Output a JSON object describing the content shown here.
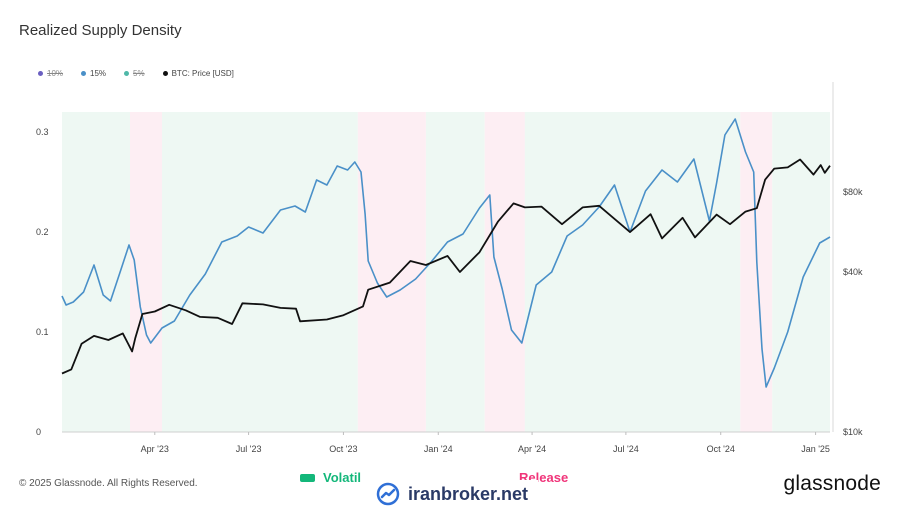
{
  "title": "Realized Supply Density",
  "legend": [
    {
      "label": "10%",
      "color": "#6a5fc1",
      "enabled": false
    },
    {
      "label": "15%",
      "color": "#4a90c8",
      "enabled": true
    },
    {
      "label": "5%",
      "color": "#4fb8a8",
      "enabled": false
    },
    {
      "label": "BTC: Price [USD]",
      "color": "#111111",
      "enabled": true
    }
  ],
  "footer": {
    "copyright": "© 2025 Glassnode. All Rights Reserved.",
    "brand": "glassnode",
    "regime_legend": [
      {
        "label": "Volatil",
        "color": "#13b77a"
      },
      {
        "label": "Release",
        "color": "#f0357a"
      }
    ],
    "watermark": "iranbroker.net"
  },
  "chart_data": {
    "type": "line",
    "title": "Realized Supply Density",
    "x_ticks": [
      "Apr '23",
      "Jul '23",
      "Oct '23",
      "Jan '24",
      "Apr '24",
      "Jul '24",
      "Oct '24",
      "Jan '25"
    ],
    "x_range": [
      "2023-01-01",
      "2025-01-15"
    ],
    "y_left": {
      "ticks": [
        "0",
        "0.1",
        "0.2",
        "0.3"
      ],
      "range": [
        0,
        0.32
      ]
    },
    "y_right": {
      "ticks": [
        "$10k",
        "$40k",
        "$80k"
      ],
      "scale": "log",
      "range": [
        10000,
        160000
      ]
    },
    "grid": true,
    "legend_position": "top-left",
    "regimes": [
      {
        "start": "2023-01-01",
        "end": "2023-03-08",
        "state": "compression",
        "color": "#eef8f3"
      },
      {
        "start": "2023-03-08",
        "end": "2023-04-08",
        "state": "release",
        "color": "#fdeef3"
      },
      {
        "start": "2023-04-08",
        "end": "2023-10-15",
        "state": "compression",
        "color": "#eef8f3"
      },
      {
        "start": "2023-10-15",
        "end": "2023-12-20",
        "state": "release",
        "color": "#fdeef3"
      },
      {
        "start": "2023-12-20",
        "end": "2024-02-15",
        "state": "compression",
        "color": "#eef8f3"
      },
      {
        "start": "2024-02-15",
        "end": "2024-03-25",
        "state": "release",
        "color": "#fdeef3"
      },
      {
        "start": "2024-03-25",
        "end": "2024-10-20",
        "state": "compression",
        "color": "#eef8f3"
      },
      {
        "start": "2024-10-20",
        "end": "2024-11-20",
        "state": "release",
        "color": "#fdeef3"
      },
      {
        "start": "2024-11-20",
        "end": "2025-01-15",
        "state": "compression",
        "color": "#eef8f3"
      }
    ],
    "series": [
      {
        "name": "15%",
        "axis": "left",
        "color": "#4a90c8",
        "points": [
          [
            "2023-01-01",
            0.136
          ],
          [
            "2023-01-05",
            0.127
          ],
          [
            "2023-01-12",
            0.13
          ],
          [
            "2023-01-22",
            0.14
          ],
          [
            "2023-02-01",
            0.167
          ],
          [
            "2023-02-10",
            0.137
          ],
          [
            "2023-02-17",
            0.131
          ],
          [
            "2023-02-27",
            0.162
          ],
          [
            "2023-03-07",
            0.187
          ],
          [
            "2023-03-12",
            0.172
          ],
          [
            "2023-03-18",
            0.125
          ],
          [
            "2023-03-24",
            0.097
          ],
          [
            "2023-03-28",
            0.089
          ],
          [
            "2023-04-08",
            0.104
          ],
          [
            "2023-04-20",
            0.111
          ],
          [
            "2023-05-05",
            0.137
          ],
          [
            "2023-05-20",
            0.158
          ],
          [
            "2023-06-05",
            0.19
          ],
          [
            "2023-06-20",
            0.196
          ],
          [
            "2023-07-01",
            0.205
          ],
          [
            "2023-07-15",
            0.199
          ],
          [
            "2023-08-01",
            0.222
          ],
          [
            "2023-08-15",
            0.226
          ],
          [
            "2023-08-25",
            0.22
          ],
          [
            "2023-09-05",
            0.252
          ],
          [
            "2023-09-15",
            0.247
          ],
          [
            "2023-09-25",
            0.266
          ],
          [
            "2023-10-05",
            0.262
          ],
          [
            "2023-10-12",
            0.27
          ],
          [
            "2023-10-18",
            0.26
          ],
          [
            "2023-10-22",
            0.218
          ],
          [
            "2023-10-25",
            0.171
          ],
          [
            "2023-11-03",
            0.149
          ],
          [
            "2023-11-12",
            0.135
          ],
          [
            "2023-11-25",
            0.142
          ],
          [
            "2023-12-10",
            0.153
          ],
          [
            "2023-12-25",
            0.17
          ],
          [
            "2024-01-10",
            0.19
          ],
          [
            "2024-01-25",
            0.198
          ],
          [
            "2024-02-10",
            0.224
          ],
          [
            "2024-02-20",
            0.237
          ],
          [
            "2024-02-24",
            0.175
          ],
          [
            "2024-03-03",
            0.143
          ],
          [
            "2024-03-12",
            0.102
          ],
          [
            "2024-03-22",
            0.089
          ],
          [
            "2024-04-05",
            0.147
          ],
          [
            "2024-04-20",
            0.16
          ],
          [
            "2024-05-05",
            0.196
          ],
          [
            "2024-05-20",
            0.207
          ],
          [
            "2024-06-05",
            0.225
          ],
          [
            "2024-06-20",
            0.247
          ],
          [
            "2024-07-05",
            0.2
          ],
          [
            "2024-07-20",
            0.241
          ],
          [
            "2024-08-05",
            0.262
          ],
          [
            "2024-08-20",
            0.25
          ],
          [
            "2024-09-05",
            0.273
          ],
          [
            "2024-09-20",
            0.211
          ],
          [
            "2024-09-27",
            0.249
          ],
          [
            "2024-10-05",
            0.297
          ],
          [
            "2024-10-15",
            0.313
          ],
          [
            "2024-10-25",
            0.28
          ],
          [
            "2024-11-02",
            0.26
          ],
          [
            "2024-11-05",
            0.17
          ],
          [
            "2024-11-10",
            0.083
          ],
          [
            "2024-11-14",
            0.045
          ],
          [
            "2024-11-22",
            0.064
          ],
          [
            "2024-12-05",
            0.1
          ],
          [
            "2024-12-20",
            0.155
          ],
          [
            "2025-01-05",
            0.189
          ],
          [
            "2025-01-15",
            0.195
          ]
        ]
      },
      {
        "name": "BTC: Price [USD]",
        "axis": "right",
        "color": "#111111",
        "points": [
          [
            "2023-01-01",
            16600
          ],
          [
            "2023-01-10",
            17200
          ],
          [
            "2023-01-20",
            21500
          ],
          [
            "2023-02-01",
            23000
          ],
          [
            "2023-02-15",
            22200
          ],
          [
            "2023-03-01",
            23500
          ],
          [
            "2023-03-10",
            20100
          ],
          [
            "2023-03-13",
            22500
          ],
          [
            "2023-03-20",
            27800
          ],
          [
            "2023-04-01",
            28400
          ],
          [
            "2023-04-15",
            30100
          ],
          [
            "2023-05-01",
            28700
          ],
          [
            "2023-05-15",
            27100
          ],
          [
            "2023-06-01",
            26900
          ],
          [
            "2023-06-15",
            25500
          ],
          [
            "2023-06-25",
            30500
          ],
          [
            "2023-07-15",
            30200
          ],
          [
            "2023-08-01",
            29300
          ],
          [
            "2023-08-16",
            29100
          ],
          [
            "2023-08-20",
            26100
          ],
          [
            "2023-09-15",
            26500
          ],
          [
            "2023-10-01",
            27500
          ],
          [
            "2023-10-20",
            29700
          ],
          [
            "2023-10-25",
            34300
          ],
          [
            "2023-11-15",
            36500
          ],
          [
            "2023-12-05",
            44000
          ],
          [
            "2023-12-20",
            42500
          ],
          [
            "2024-01-10",
            46000
          ],
          [
            "2024-01-22",
            40000
          ],
          [
            "2024-02-10",
            47500
          ],
          [
            "2024-02-28",
            62000
          ],
          [
            "2024-03-14",
            72500
          ],
          [
            "2024-03-25",
            70000
          ],
          [
            "2024-04-10",
            70500
          ],
          [
            "2024-04-30",
            60500
          ],
          [
            "2024-05-20",
            70000
          ],
          [
            "2024-06-05",
            71000
          ],
          [
            "2024-06-25",
            61000
          ],
          [
            "2024-07-05",
            56500
          ],
          [
            "2024-07-25",
            66000
          ],
          [
            "2024-08-05",
            53500
          ],
          [
            "2024-08-25",
            64000
          ],
          [
            "2024-09-06",
            54000
          ],
          [
            "2024-09-27",
            65800
          ],
          [
            "2024-10-10",
            60500
          ],
          [
            "2024-10-25",
            67500
          ],
          [
            "2024-11-05",
            69500
          ],
          [
            "2024-11-13",
            89000
          ],
          [
            "2024-11-22",
            98000
          ],
          [
            "2024-12-05",
            99000
          ],
          [
            "2024-12-17",
            106000
          ],
          [
            "2024-12-30",
            93000
          ],
          [
            "2025-01-06",
            101000
          ],
          [
            "2025-01-10",
            94500
          ],
          [
            "2025-01-15",
            100500
          ]
        ]
      }
    ]
  }
}
